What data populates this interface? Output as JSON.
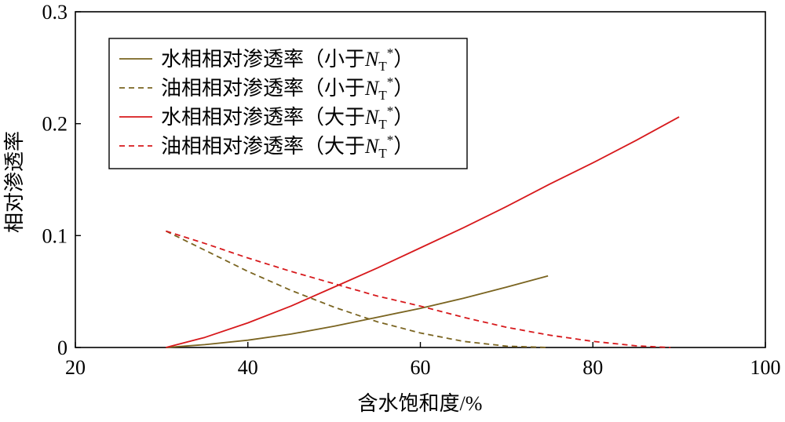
{
  "chart_data": {
    "type": "line",
    "title": "",
    "xlabel": "含水饱和度/%",
    "ylabel": "相对渗透率",
    "xlim": [
      20,
      100
    ],
    "ylim": [
      0,
      0.3
    ],
    "x_ticks": [
      "20",
      "40",
      "60",
      "80",
      "100"
    ],
    "y_ticks": [
      "0",
      "0.1",
      "0.2",
      "0.3"
    ],
    "grid": false,
    "legend_position": "top-left",
    "series": [
      {
        "name": "水相相对渗透率（小于NT*）",
        "label_main": "水相相对渗透率（小于",
        "label_sym": "N",
        "label_sub": "T",
        "label_sup": "*",
        "label_end": "）",
        "color": "#7a6420",
        "dash": "solid",
        "x": [
          30.5,
          35,
          40,
          45,
          50,
          55,
          60,
          65,
          70,
          74.8
        ],
        "y": [
          0,
          0.0025,
          0.0065,
          0.012,
          0.019,
          0.027,
          0.035,
          0.044,
          0.054,
          0.064
        ]
      },
      {
        "name": "油相相对渗透率（小于NT*）",
        "label_main": "油相相对渗透率（小于",
        "label_sym": "N",
        "label_sub": "T",
        "label_sup": "*",
        "label_end": "）",
        "color": "#7a6420",
        "dash": "dashed",
        "x": [
          30.5,
          35,
          40,
          45,
          50,
          55,
          60,
          65,
          70,
          74.8
        ],
        "y": [
          0.104,
          0.087,
          0.068,
          0.051,
          0.036,
          0.023,
          0.013,
          0.0055,
          0.0012,
          0
        ]
      },
      {
        "name": "水相相对渗透率（大于NT*）",
        "label_main": "水相相对渗透率（大于",
        "label_sym": "N",
        "label_sub": "T",
        "label_sup": "*",
        "label_end": "）",
        "color": "#d7191c",
        "dash": "solid",
        "x": [
          30.5,
          35,
          40,
          45,
          50,
          55,
          60,
          65,
          70,
          75,
          80,
          85,
          90
        ],
        "y": [
          0,
          0.009,
          0.022,
          0.037,
          0.054,
          0.071,
          0.089,
          0.107,
          0.126,
          0.146,
          0.165,
          0.185,
          0.206
        ]
      },
      {
        "name": "油相相对渗透率（大于NT*）",
        "label_main": "油相相对渗透率（大于",
        "label_sym": "N",
        "label_sub": "T",
        "label_sup": "*",
        "label_end": "）",
        "color": "#d7191c",
        "dash": "dashed",
        "x": [
          30.5,
          35,
          40,
          45,
          50,
          55,
          60,
          65,
          70,
          75,
          80,
          85,
          89
        ],
        "y": [
          0.104,
          0.093,
          0.08,
          0.068,
          0.057,
          0.046,
          0.037,
          0.027,
          0.018,
          0.011,
          0.0055,
          0.0015,
          0
        ]
      }
    ]
  }
}
